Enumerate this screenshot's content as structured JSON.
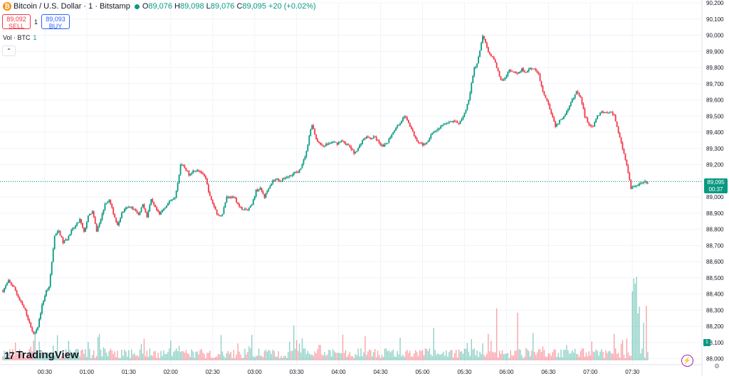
{
  "header": {
    "symbol": "Bitcoin / U.S. Dollar · 1 · Bitstamp",
    "logo_glyph": "₿",
    "ohlc": {
      "o_label": "O",
      "o": "89,076",
      "h_label": "H",
      "h": "89,098",
      "l_label": "L",
      "l": "89,076",
      "c_label": "C",
      "c": "89,095",
      "change": "+20 (+0.02%)"
    }
  },
  "trade": {
    "sell_price": "89,092",
    "sell_label": "SELL",
    "spread": "1",
    "buy_price": "89,093",
    "buy_label": "BUY"
  },
  "volume_pane": {
    "label": "Vol · BTC",
    "value": "1",
    "collapse_glyph": "⌃"
  },
  "brand": {
    "mark": "17",
    "name": "TradingView"
  },
  "price_tag": {
    "price": "89,095",
    "countdown": "00:37"
  },
  "vol_badge": "1",
  "settings_icon": "gear-icon",
  "bolt_icon": "lightning-icon",
  "colors": {
    "up": "#089981",
    "down": "#f23645",
    "grid": "#f0f3fa",
    "axis_text": "#131722"
  },
  "chart_data": {
    "type": "candlestick",
    "y_ticks": [
      88000,
      88100,
      88200,
      88300,
      88400,
      88500,
      88600,
      88700,
      88800,
      88900,
      89000,
      89100,
      89200,
      89300,
      89400,
      89500,
      89600,
      89700,
      89800,
      89900,
      90000,
      90100,
      90200
    ],
    "ylim": [
      87990,
      90200
    ],
    "x_ticks": [
      "00:30",
      "01:00",
      "01:30",
      "02:00",
      "02:30",
      "03:00",
      "03:30",
      "04:00",
      "04:30",
      "05:00",
      "05:30",
      "06:00",
      "06:30",
      "07:00",
      "07:30"
    ],
    "x_range_minutes": [
      0,
      486
    ],
    "x_tick_start_minutes": 30,
    "close_path": [
      [
        0,
        88420
      ],
      [
        4,
        88480
      ],
      [
        8,
        88440
      ],
      [
        12,
        88360
      ],
      [
        16,
        88300
      ],
      [
        19,
        88220
      ],
      [
        22,
        88150
      ],
      [
        25,
        88200
      ],
      [
        28,
        88330
      ],
      [
        31,
        88420
      ],
      [
        33,
        88440
      ],
      [
        35,
        88600
      ],
      [
        37,
        88760
      ],
      [
        40,
        88790
      ],
      [
        43,
        88720
      ],
      [
        46,
        88740
      ],
      [
        49,
        88790
      ],
      [
        52,
        88820
      ],
      [
        55,
        88860
      ],
      [
        58,
        88780
      ],
      [
        61,
        88880
      ],
      [
        64,
        88910
      ],
      [
        67,
        88790
      ],
      [
        70,
        88860
      ],
      [
        73,
        88960
      ],
      [
        76,
        88980
      ],
      [
        79,
        88900
      ],
      [
        82,
        88820
      ],
      [
        85,
        88900
      ],
      [
        88,
        88930
      ],
      [
        91,
        88940
      ],
      [
        94,
        88920
      ],
      [
        97,
        88890
      ],
      [
        100,
        88960
      ],
      [
        103,
        88880
      ],
      [
        106,
        88980
      ],
      [
        109,
        88930
      ],
      [
        112,
        88890
      ],
      [
        115,
        88930
      ],
      [
        118,
        88960
      ],
      [
        121,
        88990
      ],
      [
        123,
        89000
      ],
      [
        125,
        89090
      ],
      [
        127,
        89200
      ],
      [
        130,
        89180
      ],
      [
        133,
        89140
      ],
      [
        136,
        89160
      ],
      [
        139,
        89170
      ],
      [
        142,
        89150
      ],
      [
        145,
        89110
      ],
      [
        148,
        89000
      ],
      [
        151,
        88940
      ],
      [
        154,
        88880
      ],
      [
        157,
        88900
      ],
      [
        160,
        89000
      ],
      [
        163,
        89000
      ],
      [
        166,
        88990
      ],
      [
        169,
        88940
      ],
      [
        172,
        88920
      ],
      [
        175,
        88920
      ],
      [
        178,
        88950
      ],
      [
        181,
        89040
      ],
      [
        184,
        89050
      ],
      [
        187,
        89000
      ],
      [
        190,
        89060
      ],
      [
        193,
        89100
      ],
      [
        196,
        89110
      ],
      [
        199,
        89100
      ],
      [
        202,
        89120
      ],
      [
        205,
        89130
      ],
      [
        208,
        89150
      ],
      [
        211,
        89150
      ],
      [
        214,
        89200
      ],
      [
        217,
        89280
      ],
      [
        219,
        89380
      ],
      [
        221,
        89450
      ],
      [
        224,
        89360
      ],
      [
        227,
        89320
      ],
      [
        230,
        89320
      ],
      [
        233,
        89330
      ],
      [
        236,
        89340
      ],
      [
        239,
        89330
      ],
      [
        242,
        89350
      ],
      [
        245,
        89330
      ],
      [
        248,
        89310
      ],
      [
        251,
        89270
      ],
      [
        254,
        89300
      ],
      [
        257,
        89350
      ],
      [
        260,
        89370
      ],
      [
        263,
        89360
      ],
      [
        266,
        89370
      ],
      [
        269,
        89330
      ],
      [
        272,
        89310
      ],
      [
        275,
        89340
      ],
      [
        278,
        89390
      ],
      [
        281,
        89430
      ],
      [
        284,
        89460
      ],
      [
        287,
        89500
      ],
      [
        290,
        89460
      ],
      [
        293,
        89400
      ],
      [
        296,
        89350
      ],
      [
        299,
        89330
      ],
      [
        302,
        89320
      ],
      [
        305,
        89370
      ],
      [
        308,
        89400
      ],
      [
        311,
        89420
      ],
      [
        314,
        89440
      ],
      [
        317,
        89460
      ],
      [
        320,
        89460
      ],
      [
        323,
        89470
      ],
      [
        326,
        89450
      ],
      [
        329,
        89500
      ],
      [
        331,
        89540
      ],
      [
        333,
        89600
      ],
      [
        335,
        89700
      ],
      [
        337,
        89800
      ],
      [
        339,
        89820
      ],
      [
        341,
        89900
      ],
      [
        343,
        90000
      ],
      [
        345,
        89950
      ],
      [
        347,
        89890
      ],
      [
        350,
        89870
      ],
      [
        353,
        89800
      ],
      [
        356,
        89720
      ],
      [
        359,
        89740
      ],
      [
        362,
        89780
      ],
      [
        365,
        89770
      ],
      [
        368,
        89760
      ],
      [
        371,
        89790
      ],
      [
        374,
        89770
      ],
      [
        377,
        89800
      ],
      [
        380,
        89790
      ],
      [
        383,
        89760
      ],
      [
        386,
        89650
      ],
      [
        389,
        89600
      ],
      [
        392,
        89520
      ],
      [
        395,
        89440
      ],
      [
        398,
        89470
      ],
      [
        401,
        89500
      ],
      [
        404,
        89540
      ],
      [
        407,
        89600
      ],
      [
        410,
        89650
      ],
      [
        413,
        89620
      ],
      [
        416,
        89500
      ],
      [
        419,
        89450
      ],
      [
        422,
        89440
      ],
      [
        425,
        89500
      ],
      [
        428,
        89530
      ],
      [
        431,
        89520
      ],
      [
        434,
        89530
      ],
      [
        437,
        89500
      ],
      [
        440,
        89400
      ],
      [
        443,
        89300
      ],
      [
        446,
        89200
      ],
      [
        449,
        89050
      ],
      [
        452,
        89070
      ],
      [
        455,
        89080
      ],
      [
        458,
        89090
      ],
      [
        461,
        89095
      ]
    ],
    "last_price": 89095,
    "volume_spikes": [
      [
        99,
        0.19
      ],
      [
        208,
        0.41
      ],
      [
        308,
        0.38
      ],
      [
        353,
        0.61
      ],
      [
        368,
        0.56
      ],
      [
        379,
        0.32
      ],
      [
        421,
        0.22
      ],
      [
        437,
        0.31
      ],
      [
        450,
        0.81
      ],
      [
        451,
        0.96
      ],
      [
        452,
        0.9
      ],
      [
        453,
        0.98
      ],
      [
        454,
        0.55
      ],
      [
        455,
        0.63
      ],
      [
        458,
        0.44
      ],
      [
        460,
        0.64
      ],
      [
        462,
        0.5
      ]
    ]
  }
}
